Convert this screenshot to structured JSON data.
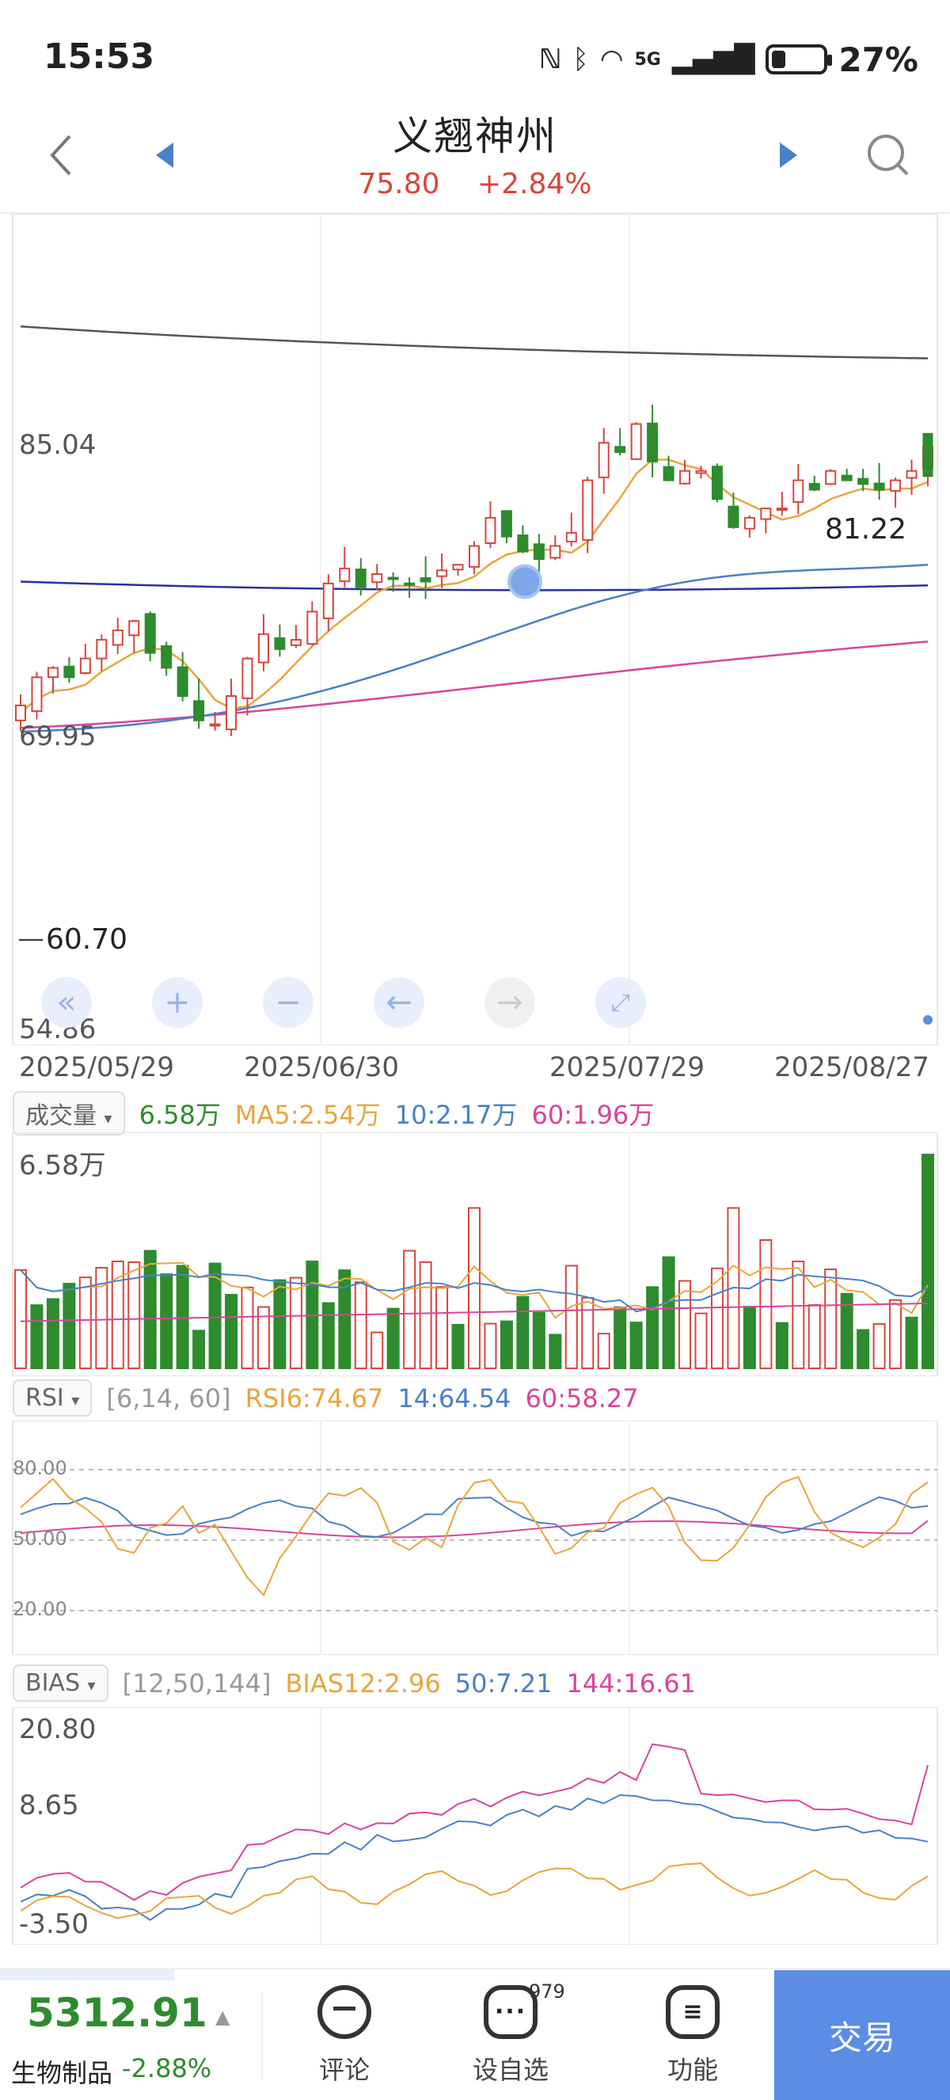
{
  "status": {
    "time": "15:53",
    "battery_pct": "27%",
    "battery_level": 0.27,
    "network": "5G"
  },
  "header": {
    "title": "义翘神州",
    "price": "75.80",
    "change": "+2.84%",
    "search_icon": "search-icon"
  },
  "colors": {
    "up": "#d9453c",
    "down": "#2e8b2e",
    "ma5": "#e8a53c",
    "ma10": "#4a7fc9",
    "ma60": "#d9449a",
    "line_long": "#2b2fa0",
    "line_top": "#555555",
    "accent": "#5b8de6"
  },
  "kline": {
    "y_labels": {
      "high": "85.04",
      "mid": "69.95",
      "low": "54.86"
    },
    "marker_high": "81.22",
    "marker_low": "60.70",
    "dates": [
      "2025/05/29",
      "2025/06/30",
      "2025/07/29",
      "2025/08/27"
    ]
  },
  "volume": {
    "selector": "成交量",
    "value": "6.58万",
    "ma5": "MA5:2.54万",
    "ma10": "10:2.17万",
    "ma60": "60:1.96万",
    "axis_max": "6.58万"
  },
  "rsi": {
    "selector": "RSI",
    "params": "[6,14, 60]",
    "rsi6": "RSI6:74.67",
    "rsi14": "14:64.54",
    "rsi60": "60:58.27",
    "levels": [
      "80.00",
      "50.00",
      "20.00"
    ]
  },
  "bias": {
    "selector": "BIAS",
    "params": "[12,50,144]",
    "b12": "BIAS12:2.96",
    "b50": "50:7.21",
    "b144": "144:16.61",
    "levels": [
      "20.80",
      "8.65",
      "-3.50"
    ]
  },
  "bottom": {
    "index_value": "5312.91",
    "index_name": "生物制品",
    "index_change": "-2.88%",
    "comment": "评论",
    "watchlist": "设自选",
    "watch_badge": "979",
    "function": "功能",
    "trade": "交易"
  },
  "chart_data": [
    {
      "type": "candlestick",
      "ylim": [
        54.86,
        85.04
      ],
      "x_ticks": [
        "2025/05/29",
        "2025/06/30",
        "2025/07/29",
        "2025/08/27"
      ],
      "close_last": 75.8,
      "annotations": [
        "81.22",
        "60.70"
      ]
    },
    {
      "type": "bar",
      "name": "成交量",
      "ylim": [
        0,
        6.58
      ],
      "unit": "万"
    },
    {
      "type": "line",
      "name": "RSI",
      "ylim": [
        20,
        80
      ],
      "series": [
        {
          "name": "RSI6",
          "last": 74.67
        },
        {
          "name": "14",
          "last": 64.54
        },
        {
          "name": "60",
          "last": 58.27
        }
      ]
    },
    {
      "type": "line",
      "name": "BIAS",
      "ylim": [
        -3.5,
        20.8
      ],
      "series": [
        {
          "name": "BIAS12",
          "last": 2.96
        },
        {
          "name": "50",
          "last": 7.21
        },
        {
          "name": "144",
          "last": 16.61
        }
      ]
    }
  ]
}
